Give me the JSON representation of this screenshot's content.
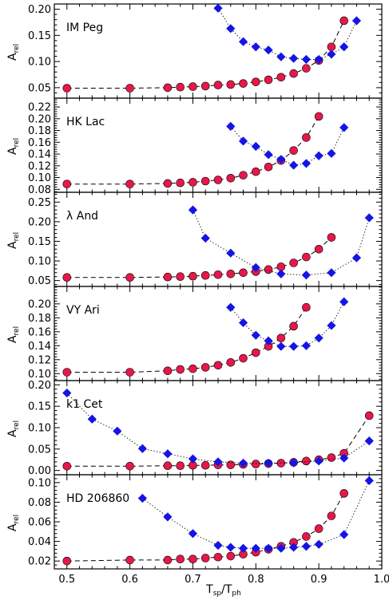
{
  "figure": {
    "x_axis_label": {
      "main": "T",
      "sub1": "sp",
      "sep": "/T",
      "sub2": "ph"
    },
    "y_axis_label": {
      "main": "A",
      "sub": "rel"
    },
    "x_tick_labels": [
      "0.5",
      "0.6",
      "0.7",
      "0.8",
      "0.9",
      "1.0"
    ]
  },
  "colors": {
    "circles": "#e8174a",
    "diamonds": "#1414e6",
    "axes": "#000000"
  },
  "chart_data": [
    {
      "type": "line",
      "title": "IM Peg",
      "xlim": [
        0.48,
        1.0
      ],
      "ylim": [
        0.03,
        0.21
      ],
      "yticks": [
        0.05,
        0.1,
        0.15,
        0.2
      ],
      "y_tick_labels": [
        "0.05",
        "0.10",
        "0.15",
        "0.20"
      ],
      "series": [
        {
          "marker": "circle",
          "line": "dashed",
          "x": [
            0.5,
            0.6,
            0.66,
            0.68,
            0.7,
            0.72,
            0.74,
            0.76,
            0.78,
            0.8,
            0.82,
            0.84,
            0.86,
            0.88,
            0.9,
            0.92,
            0.94
          ],
          "y": [
            0.049,
            0.049,
            0.05,
            0.051,
            0.052,
            0.053,
            0.055,
            0.056,
            0.058,
            0.061,
            0.065,
            0.07,
            0.077,
            0.087,
            0.102,
            0.128,
            0.178
          ]
        },
        {
          "marker": "diamond",
          "line": "dotted",
          "x": [
            0.74,
            0.76,
            0.78,
            0.8,
            0.82,
            0.84,
            0.86,
            0.88,
            0.9,
            0.92,
            0.94,
            0.96
          ],
          "y": [
            0.202,
            0.163,
            0.138,
            0.128,
            0.122,
            0.109,
            0.106,
            0.104,
            0.104,
            0.114,
            0.128,
            0.178
          ]
        }
      ]
    },
    {
      "type": "line",
      "title": "HK Lac",
      "xlim": [
        0.48,
        1.0
      ],
      "ylim": [
        0.075,
        0.235
      ],
      "yticks": [
        0.08,
        0.1,
        0.12,
        0.14,
        0.16,
        0.18,
        0.2,
        0.22
      ],
      "y_tick_labels": [
        "0.08",
        "0.10",
        "0.12",
        "0.14",
        "0.16",
        "0.18",
        "0.20",
        "0.22"
      ],
      "series": [
        {
          "marker": "circle",
          "line": "dashed",
          "x": [
            0.5,
            0.6,
            0.66,
            0.68,
            0.7,
            0.72,
            0.74,
            0.76,
            0.78,
            0.8,
            0.82,
            0.84,
            0.86,
            0.88,
            0.9
          ],
          "y": [
            0.089,
            0.089,
            0.09,
            0.091,
            0.092,
            0.094,
            0.096,
            0.099,
            0.104,
            0.11,
            0.118,
            0.129,
            0.146,
            0.168,
            0.204
          ]
        },
        {
          "marker": "diamond",
          "line": "dotted",
          "x": [
            0.76,
            0.78,
            0.8,
            0.82,
            0.84,
            0.86,
            0.88,
            0.9,
            0.92,
            0.94
          ],
          "y": [
            0.187,
            0.162,
            0.153,
            0.139,
            0.131,
            0.121,
            0.124,
            0.137,
            0.141,
            0.185
          ]
        }
      ]
    },
    {
      "type": "line",
      "title": "λ And",
      "xlim": [
        0.48,
        1.0
      ],
      "ylim": [
        0.035,
        0.275
      ],
      "yticks": [
        0.05,
        0.1,
        0.15,
        0.2,
        0.25
      ],
      "y_tick_labels": [
        "0.05",
        "0.10",
        "0.15",
        "0.20",
        "0.25"
      ],
      "series": [
        {
          "marker": "circle",
          "line": "dashed",
          "x": [
            0.5,
            0.6,
            0.66,
            0.68,
            0.7,
            0.72,
            0.74,
            0.76,
            0.78,
            0.8,
            0.82,
            0.84,
            0.86,
            0.88,
            0.9,
            0.92
          ],
          "y": [
            0.058,
            0.058,
            0.059,
            0.06,
            0.061,
            0.063,
            0.065,
            0.067,
            0.07,
            0.073,
            0.078,
            0.085,
            0.095,
            0.11,
            0.13,
            0.16
          ]
        },
        {
          "marker": "diamond",
          "line": "dotted",
          "x": [
            0.7,
            0.72,
            0.76,
            0.8,
            0.84,
            0.88,
            0.92,
            0.96,
            0.98
          ],
          "y": [
            0.23,
            0.158,
            0.12,
            0.083,
            0.067,
            0.064,
            0.07,
            0.108,
            0.21
          ]
        }
      ]
    },
    {
      "type": "line",
      "title": "VY Ari",
      "xlim": [
        0.48,
        1.0
      ],
      "ylim": [
        0.09,
        0.225
      ],
      "yticks": [
        0.1,
        0.12,
        0.14,
        0.16,
        0.18,
        0.2
      ],
      "y_tick_labels": [
        "0.10",
        "0.12",
        "0.14",
        "0.16",
        "0.18",
        "0.20"
      ],
      "series": [
        {
          "marker": "circle",
          "line": "dashed",
          "x": [
            0.5,
            0.6,
            0.66,
            0.68,
            0.7,
            0.72,
            0.74,
            0.76,
            0.78,
            0.8,
            0.82,
            0.84,
            0.86,
            0.88
          ],
          "y": [
            0.102,
            0.102,
            0.104,
            0.106,
            0.107,
            0.109,
            0.112,
            0.116,
            0.122,
            0.13,
            0.139,
            0.151,
            0.168,
            0.195
          ]
        },
        {
          "marker": "diamond",
          "line": "dotted",
          "x": [
            0.76,
            0.78,
            0.8,
            0.82,
            0.84,
            0.86,
            0.88,
            0.9,
            0.92,
            0.94
          ],
          "y": [
            0.195,
            0.173,
            0.155,
            0.147,
            0.139,
            0.139,
            0.14,
            0.151,
            0.169,
            0.203
          ]
        }
      ]
    },
    {
      "type": "line",
      "title": "k1 Cet",
      "xlim": [
        0.48,
        1.0
      ],
      "ylim": [
        -0.01,
        0.21
      ],
      "yticks": [
        0.0,
        0.05,
        0.1,
        0.15,
        0.2
      ],
      "y_tick_labels": [
        "0.00",
        "0.05",
        "0.10",
        "0.15",
        "0.20"
      ],
      "series": [
        {
          "marker": "circle",
          "line": "dashed",
          "x": [
            0.5,
            0.6,
            0.66,
            0.68,
            0.7,
            0.72,
            0.74,
            0.76,
            0.78,
            0.8,
            0.82,
            0.84,
            0.86,
            0.88,
            0.9,
            0.92,
            0.94,
            0.98
          ],
          "y": [
            0.01,
            0.01,
            0.011,
            0.011,
            0.012,
            0.012,
            0.013,
            0.013,
            0.014,
            0.015,
            0.016,
            0.017,
            0.019,
            0.022,
            0.025,
            0.03,
            0.04,
            0.128
          ]
        },
        {
          "marker": "diamond",
          "line": "dotted",
          "x": [
            0.5,
            0.54,
            0.58,
            0.62,
            0.66,
            0.7,
            0.74,
            0.78,
            0.82,
            0.86,
            0.9,
            0.94,
            0.98
          ],
          "y": [
            0.181,
            0.12,
            0.092,
            0.051,
            0.039,
            0.027,
            0.02,
            0.017,
            0.017,
            0.018,
            0.022,
            0.029,
            0.069
          ]
        }
      ]
    },
    {
      "type": "line",
      "title": "HD 206860",
      "xlim": [
        0.48,
        1.0
      ],
      "ylim": [
        0.012,
        0.108
      ],
      "yticks": [
        0.02,
        0.04,
        0.06,
        0.08,
        0.1
      ],
      "y_tick_labels": [
        "0.02",
        "0.04",
        "0.06",
        "0.08",
        "0.10"
      ],
      "series": [
        {
          "marker": "circle",
          "line": "dashed",
          "x": [
            0.5,
            0.6,
            0.66,
            0.68,
            0.7,
            0.72,
            0.74,
            0.76,
            0.78,
            0.8,
            0.82,
            0.84,
            0.86,
            0.88,
            0.9,
            0.92,
            0.94
          ],
          "y": [
            0.02,
            0.021,
            0.021,
            0.022,
            0.022,
            0.023,
            0.024,
            0.025,
            0.027,
            0.029,
            0.032,
            0.035,
            0.039,
            0.045,
            0.053,
            0.066,
            0.089
          ]
        },
        {
          "marker": "diamond",
          "line": "dotted",
          "x": [
            0.62,
            0.66,
            0.7,
            0.74,
            0.76,
            0.78,
            0.8,
            0.82,
            0.84,
            0.86,
            0.88,
            0.9,
            0.94,
            0.98
          ],
          "y": [
            0.084,
            0.065,
            0.048,
            0.036,
            0.034,
            0.033,
            0.033,
            0.033,
            0.033,
            0.034,
            0.035,
            0.037,
            0.047,
            0.102
          ]
        }
      ]
    }
  ]
}
